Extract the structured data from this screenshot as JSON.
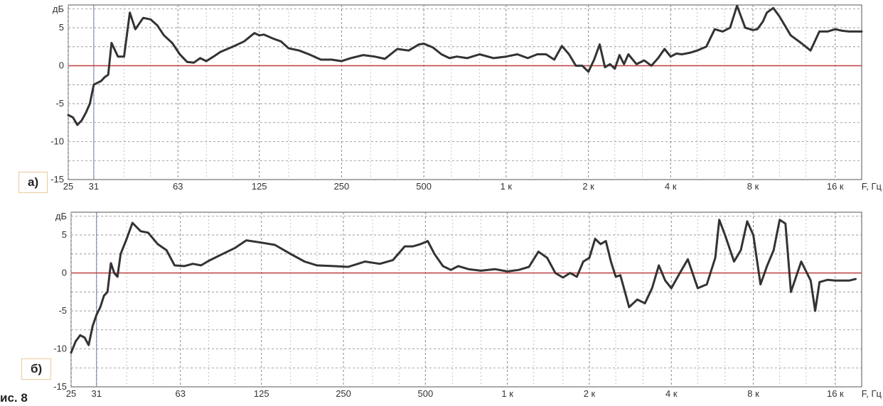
{
  "figure_caption": "ис. 8",
  "panel_labels": [
    "а)",
    "б)"
  ],
  "chart_data": [
    {
      "type": "line",
      "panel": "а)",
      "ylabel": "дБ",
      "xlabel": "F, Гц",
      "x_scale": "log",
      "xlim": [
        25,
        20000
      ],
      "ylim": [
        -15,
        8
      ],
      "grid": true,
      "x_ticks": [
        25,
        31,
        63,
        125,
        250,
        500,
        1000,
        2000,
        4000,
        8000,
        16000
      ],
      "x_tick_labels": [
        "25",
        "31",
        "63",
        "125",
        "250",
        "500",
        "1 к",
        "2 к",
        "4 к",
        "8 к",
        "16 к"
      ],
      "y_ticks": [
        -15,
        -10,
        -5,
        0,
        5
      ],
      "y_tick_labels": [
        "-15",
        "-10",
        "-5",
        "0",
        "5"
      ],
      "reference_line": 0,
      "series": [
        {
          "x": [
            25,
            26,
            27,
            28,
            29,
            30,
            31,
            33,
            34,
            35,
            36,
            38,
            40,
            42,
            44,
            47,
            50,
            53,
            56,
            60,
            64,
            68,
            72,
            76,
            80,
            85,
            90,
            100,
            110,
            120,
            125,
            130,
            140,
            150,
            160,
            175,
            190,
            210,
            230,
            250,
            270,
            300,
            330,
            360,
            400,
            440,
            480,
            500,
            540,
            580,
            620,
            660,
            720,
            800,
            900,
            1000,
            1100,
            1200,
            1300,
            1400,
            1500,
            1600,
            1700,
            1800,
            1900,
            2000,
            2100,
            2200,
            2300,
            2400,
            2500,
            2600,
            2700,
            2800,
            3000,
            3200,
            3400,
            3600,
            3800,
            4000,
            4200,
            4400,
            4700,
            5000,
            5400,
            5800,
            6200,
            6600,
            7000,
            7500,
            8000,
            8300,
            8700,
            9000,
            9500,
            10000,
            11000,
            12000,
            13000,
            14000,
            15000,
            16000,
            17000,
            18000,
            19000,
            20000
          ],
          "y": [
            -6.5,
            -6.8,
            -7.8,
            -7.2,
            -6.2,
            -5.0,
            -2.5,
            -2.0,
            -1.5,
            -1.2,
            3.0,
            1.2,
            1.2,
            7.0,
            4.8,
            6.3,
            6.1,
            5.3,
            4.0,
            3.0,
            1.5,
            0.5,
            0.4,
            1.0,
            0.6,
            1.2,
            1.8,
            2.5,
            3.2,
            4.3,
            4.0,
            4.1,
            3.6,
            3.2,
            2.3,
            2.0,
            1.5,
            0.8,
            0.8,
            0.6,
            1.0,
            1.4,
            1.2,
            0.9,
            2.2,
            2.0,
            2.8,
            2.9,
            2.4,
            1.5,
            1.0,
            1.2,
            1.0,
            1.5,
            1.0,
            1.2,
            1.5,
            1.0,
            1.5,
            1.5,
            0.8,
            2.6,
            1.5,
            0.0,
            0.0,
            -0.8,
            0.8,
            2.8,
            -0.2,
            0.2,
            -0.4,
            1.4,
            0.2,
            1.5,
            0.2,
            0.7,
            0.0,
            1.0,
            2.2,
            1.2,
            1.6,
            1.5,
            1.7,
            2.0,
            2.5,
            4.8,
            4.5,
            5.0,
            7.9,
            5.0,
            4.7,
            4.8,
            5.8,
            7.0,
            7.6,
            6.5,
            4.0,
            3.0,
            2.0,
            4.5,
            4.5,
            4.8,
            4.6,
            4.5,
            4.5,
            4.5
          ]
        }
      ]
    },
    {
      "type": "line",
      "panel": "б)",
      "ylabel": "дБ",
      "xlabel": "F, Гц",
      "x_scale": "log",
      "xlim": [
        25,
        20000
      ],
      "ylim": [
        -15,
        8
      ],
      "grid": true,
      "x_ticks": [
        25,
        31,
        63,
        125,
        250,
        500,
        1000,
        2000,
        4000,
        8000,
        16000
      ],
      "x_tick_labels": [
        "25",
        "31",
        "63",
        "125",
        "250",
        "500",
        "1 к",
        "2 к",
        "4 к",
        "8 к",
        "16 к"
      ],
      "y_ticks": [
        -15,
        -10,
        -5,
        0,
        5
      ],
      "y_tick_labels": [
        "-15",
        "-10",
        "-5",
        "0",
        "5"
      ],
      "reference_line": 0,
      "series": [
        {
          "x": [
            25,
            26,
            27,
            28,
            29,
            30,
            31,
            32,
            33,
            34,
            35,
            36,
            37,
            38,
            40,
            42,
            45,
            48,
            52,
            56,
            60,
            65,
            70,
            75,
            80,
            90,
            100,
            110,
            125,
            140,
            160,
            180,
            200,
            230,
            260,
            300,
            340,
            380,
            420,
            450,
            480,
            510,
            540,
            580,
            620,
            660,
            720,
            800,
            900,
            1000,
            1100,
            1200,
            1300,
            1400,
            1500,
            1600,
            1700,
            1800,
            1900,
            2000,
            2100,
            2200,
            2300,
            2400,
            2500,
            2600,
            2800,
            3000,
            3200,
            3400,
            3600,
            3800,
            4000,
            4300,
            4600,
            5000,
            5400,
            5800,
            6000,
            6300,
            6800,
            7200,
            7600,
            8000,
            8500,
            9000,
            9500,
            10000,
            10500,
            11000,
            12000,
            13000,
            13500,
            14000,
            15000,
            16000,
            17000,
            18000,
            19000
          ],
          "y": [
            -10.5,
            -9.0,
            -8.2,
            -8.5,
            -9.5,
            -7.0,
            -5.5,
            -4.5,
            -3.0,
            -2.5,
            1.3,
            0.0,
            -0.5,
            2.5,
            4.5,
            6.6,
            5.5,
            5.3,
            3.8,
            3.0,
            1.0,
            0.9,
            1.2,
            1.0,
            1.6,
            2.5,
            3.3,
            4.3,
            4.0,
            3.7,
            2.5,
            1.5,
            1.0,
            0.9,
            0.8,
            1.5,
            1.2,
            1.7,
            3.5,
            3.5,
            3.8,
            4.2,
            2.5,
            0.9,
            0.4,
            0.9,
            0.5,
            0.3,
            0.5,
            0.2,
            0.4,
            0.8,
            2.8,
            2.0,
            0.0,
            -0.6,
            0.0,
            -0.5,
            1.5,
            2.0,
            4.5,
            3.8,
            4.2,
            1.5,
            -0.5,
            -0.3,
            -4.5,
            -3.5,
            -4.0,
            -2.0,
            1.0,
            -1.0,
            -2.0,
            0.0,
            1.8,
            -2.0,
            -1.5,
            2.0,
            7.0,
            5.0,
            1.5,
            3.0,
            6.8,
            5.0,
            -1.5,
            1.0,
            3.0,
            7.0,
            6.5,
            -2.5,
            1.5,
            -1.0,
            -5.0,
            -1.2,
            -0.9,
            -1.0,
            -1.0,
            -1.0,
            -0.8
          ]
        }
      ]
    }
  ]
}
